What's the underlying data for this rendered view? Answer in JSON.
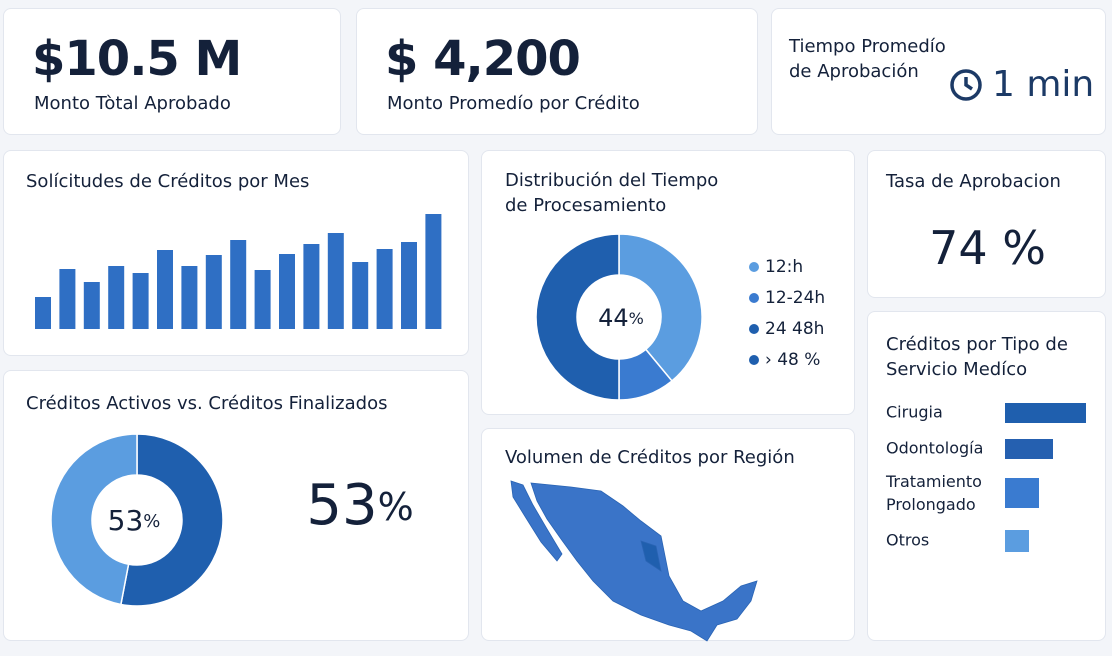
{
  "kpis": [
    {
      "value": "$10.5 M",
      "label": "Monto Tòtal Aprobado"
    },
    {
      "value": "$ 4,200",
      "label": "Monto Promedío por Crédito"
    },
    {
      "value": "1 min",
      "label": "Tiempo Promedío de Aprobación"
    },
    {
      "value": "74 %",
      "label": "Tasa de Aprobacion"
    }
  ],
  "chart_data": [
    {
      "type": "bar",
      "title": "Solícitudes de Créditos por Mes",
      "values": [
        32,
        60,
        47,
        63,
        56,
        79,
        63,
        74,
        89,
        59,
        75,
        85,
        96,
        67,
        80,
        87,
        115
      ],
      "color": "#2f6fc4",
      "ylim": [
        0,
        120
      ]
    },
    {
      "type": "donut",
      "title": "Distribución del Tiempo de Procesamiento",
      "categories": [
        "12:h",
        "12-24h",
        "24 48h",
        "› 48 %"
      ],
      "values": [
        39,
        11,
        50,
        null
      ],
      "colors": [
        "#5b9de0",
        "#3a7bd0",
        "#1f5fae",
        "#1f5fae"
      ],
      "center_label": "44%",
      "legend": "right"
    },
    {
      "type": "donut",
      "title": "Créditos Activos vs. Créditos Finalizados",
      "categories": [
        null,
        null
      ],
      "values": [
        53,
        47
      ],
      "colors": [
        "#1f5fae",
        "#5b9de0"
      ],
      "center_label": "53%",
      "side_label": "53%"
    },
    {
      "type": "map",
      "title": "Volumen de Créditos por Región",
      "color": "#3a74c8"
    },
    {
      "type": "hbar",
      "title": "Créditos por Tipo de Servicio Medíco",
      "categories": [
        "Cirugia",
        "Odontología",
        "Tratamiento Prolongado",
        "Otros"
      ],
      "values": [
        81,
        48,
        34,
        24
      ],
      "colors": [
        "#1f5fae",
        "#2560b0",
        "#3a7bd0",
        "#5b9de0"
      ],
      "xlim": [
        0,
        100
      ]
    }
  ]
}
